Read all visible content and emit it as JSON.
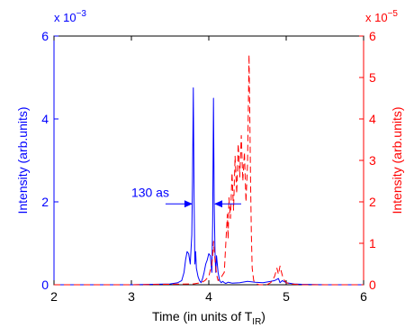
{
  "chart_data": {
    "type": "line",
    "title": "",
    "xlabel": {
      "main": "Time (in units of T",
      "sub": "IR",
      "close": ")"
    },
    "xlim": [
      2,
      6
    ],
    "x_ticks": [
      "2",
      "3",
      "4",
      "5",
      "6"
    ],
    "colors": {
      "left": "#0000ff",
      "right": "#ff0000",
      "axis": "#000000"
    },
    "left_axis": {
      "label": "Intensity (arb.units)",
      "ylim": [
        0,
        6
      ],
      "ticks": [
        "0",
        "2",
        "4",
        "6"
      ],
      "multiplier": {
        "base": "x 10",
        "exp": "−3"
      }
    },
    "right_axis": {
      "label": "Intensity (arb.units)",
      "ylim": [
        0,
        6
      ],
      "ticks": [
        "0",
        "1",
        "2",
        "3",
        "4",
        "5",
        "6"
      ],
      "multiplier": {
        "base": "x 10",
        "exp": "−5"
      }
    },
    "annotation": {
      "text": "130 as",
      "x_from": 3.79,
      "x_to": 4.07,
      "y": 1.95
    },
    "series": [
      {
        "axis": "left",
        "style": "solid",
        "color": "#0000ff",
        "x": [
          2.0,
          3.0,
          3.5,
          3.6,
          3.65,
          3.68,
          3.7,
          3.72,
          3.74,
          3.76,
          3.78,
          3.79,
          3.8,
          3.81,
          3.82,
          3.83,
          3.84,
          3.86,
          3.88,
          3.9,
          3.92,
          3.94,
          3.96,
          3.98,
          4.0,
          4.02,
          4.04,
          4.05,
          4.06,
          4.07,
          4.08,
          4.09,
          4.1,
          4.12,
          4.14,
          4.16,
          4.18,
          4.2,
          4.22,
          4.25,
          4.3,
          4.4,
          4.5,
          4.6,
          4.7,
          4.8,
          4.85,
          4.9,
          4.92,
          4.95,
          5.0,
          5.1,
          5.2,
          5.5,
          6.0
        ],
        "y": [
          0.0,
          0.0,
          0.02,
          0.05,
          0.1,
          0.3,
          0.6,
          0.8,
          0.75,
          0.5,
          1.2,
          2.5,
          4.75,
          2.0,
          0.5,
          0.8,
          0.4,
          0.2,
          0.1,
          0.05,
          0.15,
          0.3,
          0.5,
          0.6,
          0.75,
          0.7,
          0.3,
          1.5,
          4.5,
          2.0,
          0.8,
          0.3,
          0.7,
          0.3,
          0.1,
          0.05,
          0.08,
          0.05,
          0.03,
          0.06,
          0.04,
          0.05,
          0.08,
          0.06,
          0.05,
          0.08,
          0.1,
          0.15,
          0.05,
          0.1,
          0.05,
          0.02,
          0.01,
          0.0,
          0.0
        ]
      },
      {
        "axis": "right",
        "style": "dashed",
        "color": "#ff0000",
        "x": [
          2.0,
          3.0,
          3.8,
          3.9,
          3.95,
          4.0,
          4.02,
          4.04,
          4.05,
          4.06,
          4.08,
          4.1,
          4.12,
          4.15,
          4.2,
          4.22,
          4.24,
          4.25,
          4.26,
          4.28,
          4.3,
          4.32,
          4.34,
          4.36,
          4.38,
          4.4,
          4.42,
          4.44,
          4.46,
          4.48,
          4.5,
          4.51,
          4.52,
          4.53,
          4.54,
          4.55,
          4.56,
          4.58,
          4.6,
          4.62,
          4.65,
          4.7,
          4.75,
          4.8,
          4.85,
          4.88,
          4.9,
          4.92,
          4.94,
          4.96,
          5.0,
          5.05,
          5.2,
          6.0
        ],
        "y": [
          0.0,
          0.0,
          0.02,
          0.05,
          0.1,
          0.2,
          0.35,
          0.5,
          0.7,
          1.05,
          0.6,
          0.25,
          0.1,
          0.15,
          0.3,
          1.0,
          1.7,
          1.1,
          2.1,
          1.6,
          2.7,
          1.8,
          3.1,
          2.2,
          3.4,
          2.6,
          3.6,
          2.5,
          3.2,
          2.0,
          2.9,
          4.2,
          5.55,
          4.0,
          2.5,
          1.2,
          0.4,
          0.1,
          0.05,
          0.02,
          0.0,
          0.0,
          0.0,
          0.05,
          0.2,
          0.4,
          0.25,
          0.45,
          0.3,
          0.15,
          0.05,
          0.02,
          0.0,
          0.0
        ]
      }
    ]
  }
}
